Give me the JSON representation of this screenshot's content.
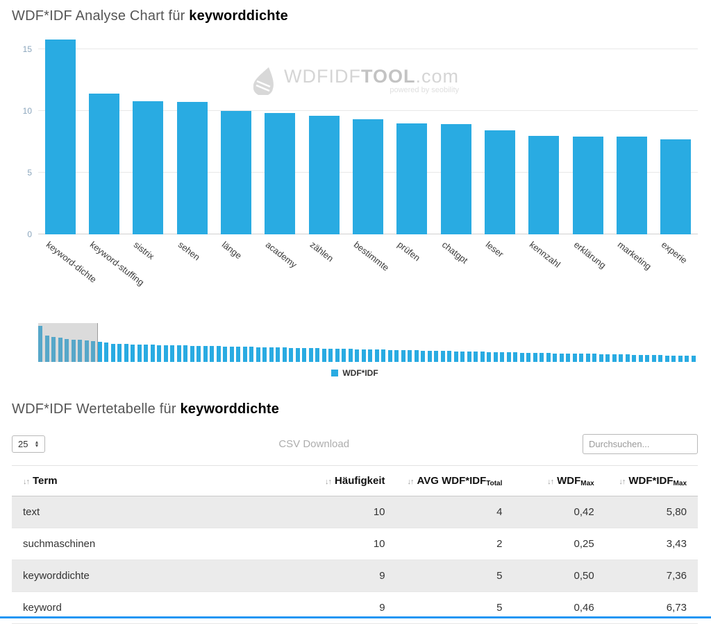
{
  "chart_section": {
    "title_prefix": "WDF*IDF Analyse Chart für ",
    "title_keyword": "keyworddichte"
  },
  "watermark": {
    "brand_light": "WDFIDF",
    "brand_bold": "TOOL",
    "brand_suffix": ".com",
    "powered_by": "powered by seobility"
  },
  "legend": {
    "label": "WDF*IDF"
  },
  "icons": {
    "sort": "↓↑",
    "stepper_up": "▲",
    "stepper_down": "▼"
  },
  "chart_data": {
    "type": "bar",
    "title": "WDF*IDF Analyse Chart für keyworddichte",
    "series_name": "WDF*IDF",
    "bar_color": "#29abe2",
    "grid": true,
    "legend_position": "bottom",
    "xlabel": "",
    "ylabel": "",
    "ylim": [
      0,
      16
    ],
    "yticks": [
      0,
      5,
      10,
      15
    ],
    "categories": [
      "keyword-dichte",
      "keyword-stuffing",
      "sistrix",
      "sehen",
      "länge",
      "academy",
      "zählen",
      "bestimmte",
      "prüfen",
      "chatgpt",
      "leser",
      "kennzahl",
      "erklärung",
      "marketing",
      "experie"
    ],
    "values": [
      15.8,
      11.4,
      10.8,
      10.7,
      10.0,
      9.8,
      9.6,
      9.3,
      9.0,
      8.9,
      8.4,
      8.0,
      7.9,
      7.9,
      7.7
    ],
    "navigator": {
      "selection_start_index": 0,
      "selection_bar_count": 9,
      "values": [
        15.8,
        11.4,
        10.8,
        10.7,
        10.0,
        9.8,
        9.6,
        9.3,
        9.0,
        8.9,
        8.4,
        8.0,
        7.9,
        7.9,
        7.7,
        7.6,
        7.6,
        7.5,
        7.4,
        7.4,
        7.3,
        7.3,
        7.2,
        7.1,
        7.1,
        7.0,
        7.0,
        6.9,
        6.8,
        6.8,
        6.7,
        6.7,
        6.6,
        6.5,
        6.5,
        6.4,
        6.4,
        6.3,
        6.2,
        6.2,
        6.1,
        6.1,
        6.0,
        5.9,
        5.9,
        5.8,
        5.8,
        5.7,
        5.6,
        5.6,
        5.5,
        5.5,
        5.4,
        5.3,
        5.3,
        5.2,
        5.2,
        5.1,
        5.0,
        5.0,
        4.9,
        4.9,
        4.8,
        4.7,
        4.7,
        4.6,
        4.6,
        4.5,
        4.4,
        4.4,
        4.3,
        4.3,
        4.2,
        4.1,
        4.1,
        4.0,
        4.0,
        3.9,
        3.8,
        3.8,
        3.7,
        3.7,
        3.6,
        3.5,
        3.5,
        3.4,
        3.4,
        3.3,
        3.2,
        3.2,
        3.1,
        3.1,
        3.0,
        2.9,
        2.9,
        2.8,
        2.8,
        2.7,
        2.6,
        2.6
      ]
    }
  },
  "table_section": {
    "title_prefix": "WDF*IDF Wertetabelle für ",
    "title_keyword": "keyworddichte",
    "page_size_value": "25",
    "csv_label": "CSV Download",
    "search_placeholder": "Durchsuchen...",
    "headers": [
      {
        "label": "Term",
        "sub": ""
      },
      {
        "label": "Häufigkeit",
        "sub": ""
      },
      {
        "label": "AVG WDF*IDF",
        "sub": "Total"
      },
      {
        "label": "WDF",
        "sub": "Max"
      },
      {
        "label": "WDF*IDF",
        "sub": "Max"
      }
    ],
    "rows": [
      [
        "text",
        "10",
        "4",
        "0,42",
        "5,80"
      ],
      [
        "suchmaschinen",
        "10",
        "2",
        "0,25",
        "3,43"
      ],
      [
        "keyworddichte",
        "9",
        "5",
        "0,50",
        "7,36"
      ],
      [
        "keyword",
        "9",
        "5",
        "0,46",
        "6,73"
      ]
    ]
  }
}
